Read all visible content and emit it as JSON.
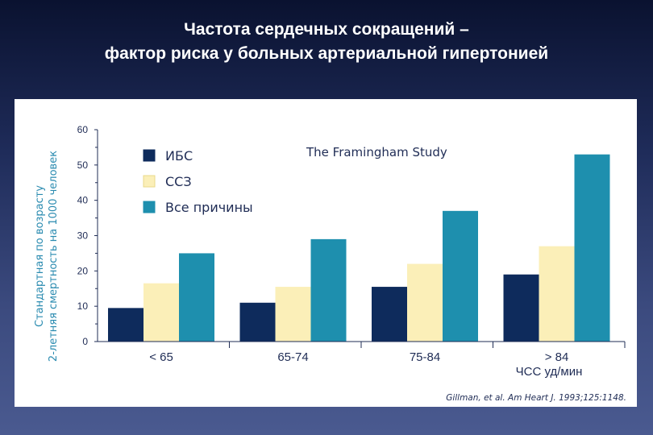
{
  "slide": {
    "title_line1": "Частота сердечных сокращений –",
    "title_line2": "фактор риска у больных артериальной гипертонией"
  },
  "chart_data": {
    "type": "bar",
    "study_label": "The Framingham Study",
    "ylabel_line1": "Стандартная по возрасту",
    "ylabel_line2": "2-летняя смертность на 1000 человек",
    "xlabel": "ЧСС уд/мин",
    "categories": [
      "< 65",
      "65-74",
      "75-84",
      "> 84"
    ],
    "series": [
      {
        "name": "ИБС",
        "values": [
          9.5,
          11,
          15.5,
          19
        ],
        "color": "#0e2b5c"
      },
      {
        "name": "ССЗ",
        "values": [
          16.5,
          15.5,
          22,
          27
        ],
        "color": "#fbefb8"
      },
      {
        "name": "Все причины",
        "values": [
          25,
          29,
          37,
          53
        ],
        "color": "#1e8fae"
      }
    ],
    "ylim": [
      0,
      60
    ],
    "yticks": [
      0,
      10,
      20,
      30,
      40,
      50,
      60
    ],
    "grid": false,
    "legend_position": "top-left",
    "citation": "Gillman, et al. Am Heart J. 1993;125:1148."
  }
}
